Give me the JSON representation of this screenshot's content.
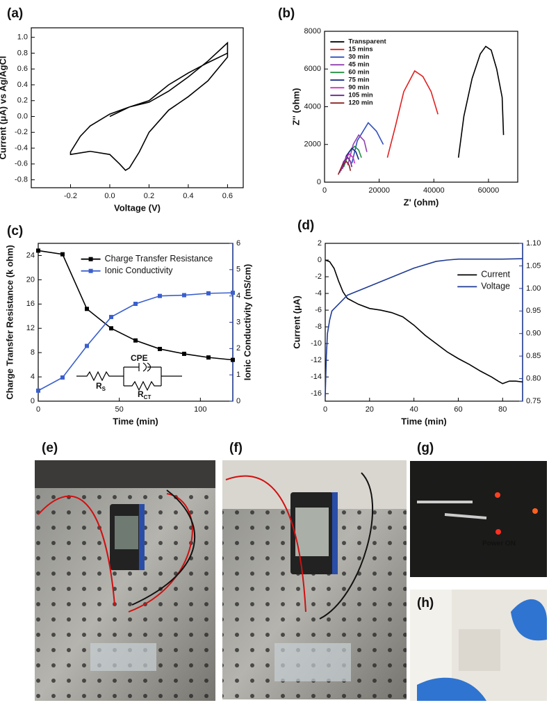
{
  "chart_data": [
    {
      "type": "line",
      "panel_label": "(a)",
      "x_label": "Voltage (V)",
      "y_label": "Current (μA) vs Ag/AgCl",
      "color": "#000000",
      "x": [
        0.0,
        0.1,
        0.2,
        0.3,
        0.4,
        0.5,
        0.6,
        0.6,
        0.5,
        0.4,
        0.3,
        0.2,
        0.15,
        0.1,
        0.08,
        0.05,
        0.0,
        -0.1,
        -0.2,
        -0.2,
        -0.15,
        -0.1,
        0.0,
        0.1,
        0.2,
        0.3,
        0.4,
        0.5,
        0.6
      ],
      "values": [
        0.0,
        0.12,
        0.18,
        0.32,
        0.5,
        0.7,
        0.93,
        0.75,
        0.45,
        0.25,
        0.08,
        -0.2,
        -0.45,
        -0.65,
        -0.68,
        -0.6,
        -0.48,
        -0.44,
        -0.48,
        -0.45,
        -0.25,
        -0.12,
        0.03,
        0.12,
        0.2,
        0.4,
        0.55,
        0.68,
        0.8
      ],
      "xlim": [
        -0.4,
        0.68
      ],
      "xticks": [
        -0.2,
        {
          "value": 0,
          "label": "0.0"
        },
        0.2,
        0.4,
        0.6
      ],
      "ylim": [
        -0.9,
        1.12
      ],
      "yticks": [
        -0.8,
        -0.6,
        -0.4,
        -0.2,
        {
          "value": 0,
          "label": "0.0"
        },
        0.2,
        0.4,
        0.6,
        0.8,
        {
          "value": 1,
          "label": "1.0"
        }
      ]
    },
    {
      "type": "line",
      "panel_label": "(b)",
      "x_label": "Z' (ohm)",
      "y_label": "Z'' (ohm)",
      "legend": "upper left",
      "xlim": [
        0,
        70700
      ],
      "xticks": [
        0,
        20000,
        40000,
        60000
      ],
      "ylim": [
        0,
        8000
      ],
      "yticks": [
        0,
        2000,
        4000,
        6000,
        8000
      ],
      "series": [
        {
          "name": "Transparent",
          "color": "#000000",
          "x": [
            49000,
            51000,
            54000,
            57000,
            59000,
            61000,
            63000,
            65000,
            65500
          ],
          "values": [
            1300,
            3500,
            5500,
            6800,
            7200,
            7000,
            6000,
            4500,
            2500
          ]
        },
        {
          "name": "15 mins",
          "color": "#e02020",
          "x": [
            23000,
            26000,
            29000,
            33000,
            36000,
            39000,
            41500
          ],
          "values": [
            1300,
            3000,
            4800,
            5900,
            5600,
            4800,
            3600
          ]
        },
        {
          "name": "30 min",
          "color": "#3050c0",
          "x": [
            10000,
            12000,
            16000,
            19000,
            21500
          ],
          "values": [
            1000,
            2200,
            3150,
            2700,
            2000
          ]
        },
        {
          "name": "45 min",
          "color": "#9040b0",
          "x": [
            8500,
            10500,
            12500,
            14500,
            15500
          ],
          "values": [
            900,
            2000,
            2500,
            2200,
            1600
          ]
        },
        {
          "name": "60 min",
          "color": "#209040",
          "x": [
            7000,
            9000,
            11000,
            12500,
            13500
          ],
          "values": [
            800,
            1600,
            1900,
            1700,
            1300
          ]
        },
        {
          "name": "75 min",
          "color": "#1a2a80",
          "x": [
            6500,
            8000,
            10000,
            11500,
            12500
          ],
          "values": [
            700,
            1400,
            1800,
            1600,
            1200
          ]
        },
        {
          "name": "90 min",
          "color": "#d030c0",
          "x": [
            6000,
            7500,
            9000,
            10500,
            11000
          ],
          "values": [
            600,
            1200,
            1500,
            1300,
            1000
          ]
        },
        {
          "name": "105 min",
          "color": "#6a2090",
          "x": [
            5500,
            7000,
            8500,
            9500,
            10000
          ],
          "values": [
            500,
            1100,
            1300,
            1100,
            800
          ]
        },
        {
          "name": "120 min",
          "color": "#8a2020",
          "x": [
            5000,
            6500,
            8000,
            9000,
            9500
          ],
          "values": [
            400,
            900,
            1100,
            900,
            600
          ]
        }
      ]
    },
    {
      "type": "line",
      "panel_label": "(c)",
      "x_label": "Time (min)",
      "y_label": "Charge Transfer Resistance (k ohm)",
      "y2_label": "Ionic Conductivity (mS/cm)",
      "legend": "upper center",
      "markers": true,
      "xlim": [
        0,
        120
      ],
      "xticks": [
        0,
        50,
        100
      ],
      "ylim": [
        0,
        26
      ],
      "yticks": [
        0,
        4,
        8,
        12,
        16,
        20,
        24
      ],
      "y2lim": [
        0,
        6
      ],
      "y2ticks": [
        0,
        1,
        2,
        3,
        4,
        5,
        6
      ],
      "annotations": [
        {
          "text": "CPE"
        },
        {
          "text": "R",
          "sub": "S"
        },
        {
          "text": "R",
          "sub": "CT"
        }
      ],
      "series": [
        {
          "name": "Charge Transfer Resistance",
          "color": "#000000",
          "x": [
            0,
            15,
            30,
            45,
            60,
            75,
            90,
            105,
            120
          ],
          "values": [
            24.8,
            24.2,
            15.2,
            12,
            10,
            8.6,
            7.8,
            7.2,
            6.8
          ]
        },
        {
          "name": "Ionic Conductivity",
          "color": "#3a5fcd",
          "axis": "y2",
          "x": [
            0,
            15,
            30,
            45,
            60,
            75,
            90,
            105,
            120
          ],
          "values": [
            0.4,
            0.9,
            2.1,
            3.2,
            3.7,
            4.0,
            4.03,
            4.1,
            4.12
          ]
        }
      ]
    },
    {
      "type": "line",
      "panel_label": "(d)",
      "x_label": "Time (min)",
      "y_label": "Current (μA)",
      "legend": "upper right",
      "xlim": [
        0,
        89
      ],
      "xticks": [
        0,
        20,
        40,
        60,
        80
      ],
      "ylim": [
        -16.9,
        2
      ],
      "yticks": [
        -16,
        -14,
        -12,
        -10,
        -8,
        -6,
        -4,
        -2,
        0,
        2
      ],
      "y2lim": [
        0.75,
        1.1
      ],
      "y2ticks": [
        0.75,
        {
          "value": 0.8,
          "label": "0.80"
        },
        0.85,
        {
          "value": 0.9,
          "label": "0.90"
        },
        0.95,
        {
          "value": 1,
          "label": "1.00"
        },
        1.05,
        {
          "value": 1.1,
          "label": "1.10"
        }
      ],
      "series": [
        {
          "name": "Current",
          "color": "#000000",
          "x": [
            0,
            2,
            4,
            6,
            8,
            10,
            15,
            20,
            25,
            30,
            35,
            40,
            45,
            50,
            55,
            60,
            65,
            70,
            75,
            78,
            80,
            83,
            86,
            89
          ],
          "values": [
            0,
            -0.2,
            -1,
            -2.5,
            -3.8,
            -4.6,
            -5.3,
            -5.8,
            -6.0,
            -6.3,
            -6.8,
            -7.8,
            -9,
            -10,
            -11,
            -11.8,
            -12.5,
            -13.3,
            -14,
            -14.5,
            -14.8,
            -14.5,
            -14.5,
            -14.6
          ]
        },
        {
          "name": "Voltage",
          "color": "#1f3a93",
          "axis": "y2",
          "x": [
            0,
            0.5,
            1,
            2,
            3,
            5,
            8,
            10,
            15,
            20,
            30,
            40,
            50,
            55,
            60,
            70,
            80,
            89
          ],
          "values": [
            0.76,
            0.85,
            0.9,
            0.93,
            0.95,
            0.96,
            0.975,
            0.985,
            0.995,
            1.005,
            1.025,
            1.045,
            1.06,
            1.063,
            1.065,
            1.065,
            1.065,
            1.066
          ]
        }
      ]
    }
  ],
  "photos": [
    {
      "label": "(e)"
    },
    {
      "label": "(f)"
    },
    {
      "label": "(g)",
      "caption": "Power ON"
    },
    {
      "label": "(h)"
    }
  ]
}
